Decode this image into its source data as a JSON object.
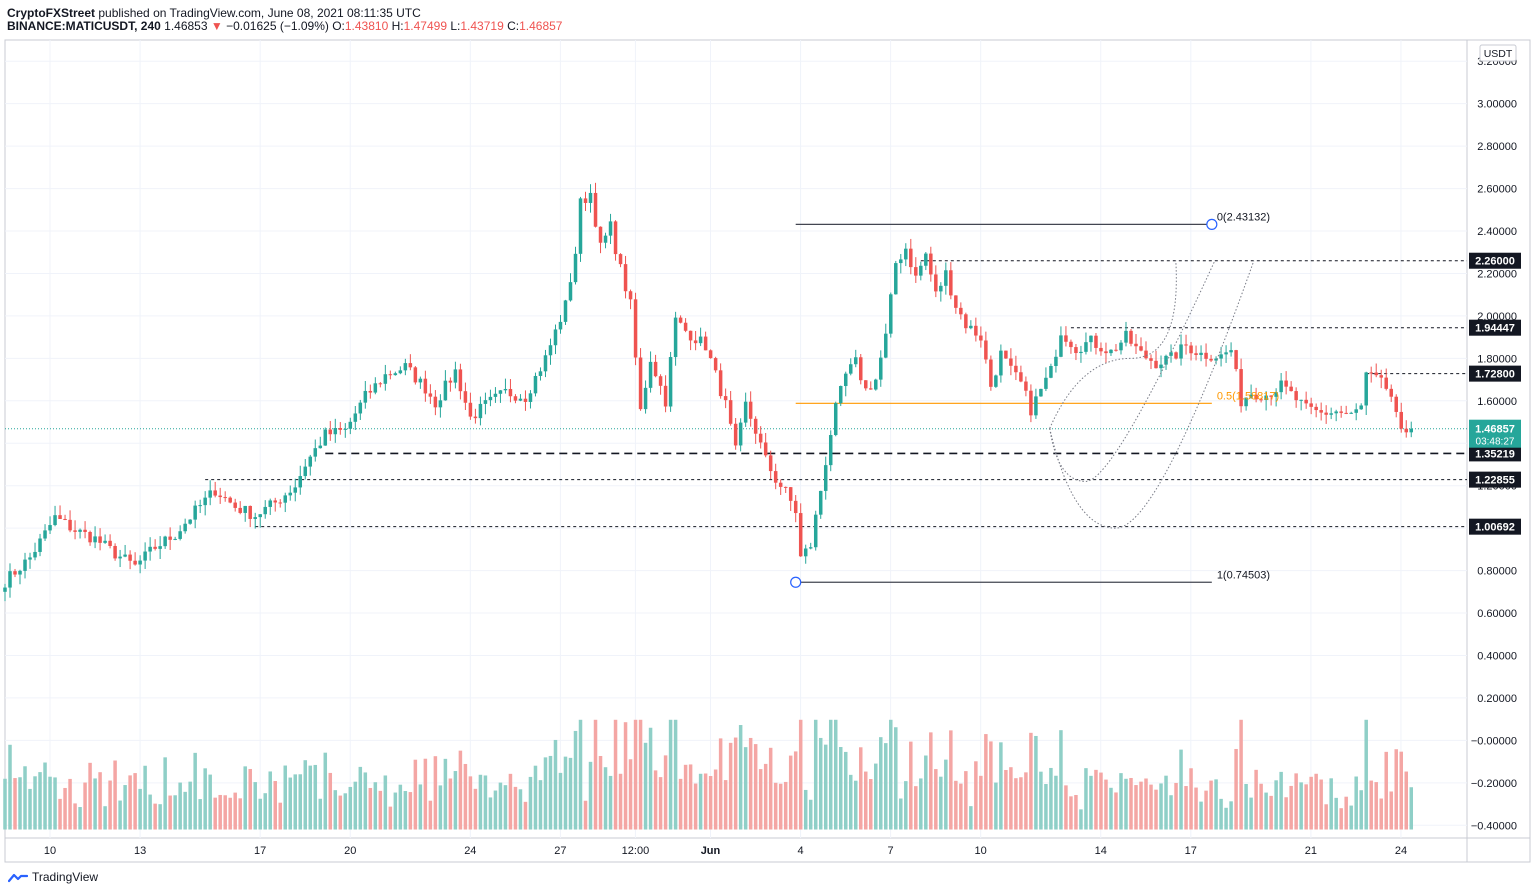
{
  "header": {
    "publisher": "CryptoFXStreet",
    "published_text": "published on TradingView.com, June 08, 2021 08:11:35 UTC",
    "symbol": "BINANCE:MATICUSDT, 240",
    "last": "1.46853",
    "change": "−0.01625 (−1.09%)",
    "o_label": "O:",
    "o_val": "1.43810",
    "h_label": "H:",
    "h_val": "1.47499",
    "l_label": "L:",
    "l_val": "1.43719",
    "c_label": "C:",
    "c_val": "1.46857"
  },
  "footer": {
    "brand": "TradingView"
  },
  "colors": {
    "up": "#26a69a",
    "down": "#ef5350",
    "up_vol": "#8fcfc7",
    "down_vol": "#f4a6a4",
    "fib_mid": "#ff9800"
  },
  "chart_data": {
    "type": "candlestick",
    "currency_label": "USDT",
    "ylim": [
      -0.46,
      3.3
    ],
    "y_ticks": [
      3.2,
      3.0,
      2.8,
      2.6,
      2.4,
      2.2,
      2.0,
      1.8,
      1.6,
      1.4,
      1.2,
      1.0,
      0.8,
      0.6,
      0.4,
      0.2,
      0.0,
      -0.2,
      -0.4
    ],
    "y_tick_labels": [
      "3.20000",
      "3.00000",
      "2.80000",
      "2.60000",
      "2.40000",
      "2.20000",
      "2.00000",
      "1.80000",
      "1.60000",
      "1.40000",
      "1.20000",
      "1.00000",
      "0.80000",
      "0.60000",
      "0.40000",
      "0.20000",
      "−0.00000",
      "−0.20000",
      "−0.40000"
    ],
    "x_ticks": [
      {
        "label": "10",
        "t": 4.5
      },
      {
        "label": "13",
        "t": 7.5
      },
      {
        "label": "17",
        "t": 11.5
      },
      {
        "label": "20",
        "t": 14.5
      },
      {
        "label": "24",
        "t": 18.5
      },
      {
        "label": "27",
        "t": 21.5
      },
      {
        "label": "12:00",
        "t": 24
      },
      {
        "label": "Jun",
        "t": 26.5
      },
      {
        "label": "4",
        "t": 29.5
      },
      {
        "label": "7",
        "t": 32.5
      },
      {
        "label": "10",
        "t": 35.5
      },
      {
        "label": "14",
        "t": 39.5
      },
      {
        "label": "17",
        "t": 42.5
      },
      {
        "label": "21",
        "t": 46.5
      },
      {
        "label": "24",
        "t": 49.5
      }
    ],
    "x_range_days": [
      3.0,
      51.7
    ],
    "candles_start_day": 3.0,
    "candle_interval_days": 0.1667,
    "anchors": [
      [
        0,
        0.75
      ],
      [
        5,
        0.86
      ],
      [
        10,
        1.05
      ],
      [
        14,
        0.99
      ],
      [
        18,
        0.95
      ],
      [
        22,
        0.88
      ],
      [
        26,
        0.82
      ],
      [
        30,
        0.91
      ],
      [
        34,
        0.97
      ],
      [
        38,
        1.08
      ],
      [
        42,
        1.18
      ],
      [
        46,
        1.1
      ],
      [
        50,
        1.06
      ],
      [
        54,
        1.12
      ],
      [
        58,
        1.2
      ],
      [
        60,
        1.3
      ],
      [
        64,
        1.44
      ],
      [
        68,
        1.46
      ],
      [
        72,
        1.62
      ],
      [
        76,
        1.72
      ],
      [
        80,
        1.76
      ],
      [
        84,
        1.66
      ],
      [
        86,
        1.59
      ],
      [
        90,
        1.74
      ],
      [
        93,
        1.52
      ],
      [
        96,
        1.58
      ],
      [
        100,
        1.64
      ],
      [
        104,
        1.62
      ],
      [
        108,
        1.8
      ],
      [
        112,
        2.05
      ],
      [
        114,
        2.3
      ],
      [
        115,
        2.53
      ],
      [
        117,
        2.58
      ],
      [
        119,
        2.32
      ],
      [
        121,
        2.42
      ],
      [
        123,
        2.22
      ],
      [
        125,
        2.05
      ],
      [
        127,
        1.55
      ],
      [
        129,
        1.8
      ],
      [
        132,
        1.6
      ],
      [
        134,
        1.98
      ],
      [
        136,
        1.93
      ],
      [
        140,
        1.86
      ],
      [
        144,
        1.58
      ],
      [
        146,
        1.36
      ],
      [
        148,
        1.58
      ],
      [
        150,
        1.46
      ],
      [
        152,
        1.32
      ],
      [
        154,
        1.23
      ],
      [
        156,
        1.17
      ],
      [
        158,
        1.08
      ],
      [
        159,
        0.86
      ],
      [
        161,
        0.92
      ],
      [
        163,
        1.18
      ],
      [
        165,
        1.45
      ],
      [
        166,
        1.56
      ],
      [
        168,
        1.72
      ],
      [
        170,
        1.78
      ],
      [
        172,
        1.65
      ],
      [
        174,
        1.7
      ],
      [
        176,
        1.9
      ],
      [
        178,
        2.25
      ],
      [
        180,
        2.32
      ],
      [
        182,
        2.18
      ],
      [
        184,
        2.29
      ],
      [
        186,
        2.1
      ],
      [
        188,
        2.2
      ],
      [
        190,
        2.05
      ],
      [
        192,
        1.96
      ],
      [
        195,
        1.9
      ],
      [
        197,
        1.67
      ],
      [
        199,
        1.82
      ],
      [
        201,
        1.74
      ],
      [
        203,
        1.68
      ],
      [
        205,
        1.56
      ],
      [
        207,
        1.65
      ],
      [
        209,
        1.74
      ],
      [
        211,
        1.93
      ],
      [
        214,
        1.85
      ],
      [
        217,
        1.88
      ],
      [
        221,
        1.83
      ],
      [
        224,
        1.9
      ],
      [
        227,
        1.82
      ],
      [
        230,
        1.78
      ],
      [
        233,
        1.8
      ],
      [
        236,
        1.86
      ],
      [
        239,
        1.82
      ],
      [
        243,
        1.81
      ],
      [
        245,
        1.84
      ],
      [
        247,
        1.6
      ],
      [
        249,
        1.64
      ],
      [
        252,
        1.63
      ],
      [
        255,
        1.67
      ],
      [
        257,
        1.63
      ],
      [
        260,
        1.56
      ],
      [
        263,
        1.54
      ],
      [
        266,
        1.55
      ],
      [
        269,
        1.53
      ],
      [
        271,
        1.57
      ],
      [
        272,
        1.72
      ],
      [
        274,
        1.7
      ],
      [
        276,
        1.66
      ],
      [
        277,
        1.62
      ],
      [
        278,
        1.52
      ],
      [
        279,
        1.44
      ],
      [
        280,
        1.46
      ],
      [
        281,
        1.47
      ]
    ],
    "fib_levels": [
      {
        "label": "0(2.43132)",
        "value": 2.43132,
        "from_candle": 158,
        "to_day": 43.2,
        "style": "solid"
      },
      {
        "label": "0.5(1.58817)",
        "value": 1.58817,
        "from_candle": 158,
        "to_day": 43.2,
        "style": "solid-orange"
      },
      {
        "label": "1(0.74503)",
        "value": 0.74503,
        "from_candle": 158,
        "to_day": 43.2,
        "style": "solid"
      }
    ],
    "levels": [
      {
        "label": "2.26000",
        "value": 2.26,
        "from_candle": 183,
        "style": "dashed"
      },
      {
        "label": "1.94447",
        "value": 1.94447,
        "from_candle": 213,
        "style": "dashed"
      },
      {
        "label": "1.72800",
        "value": 1.728,
        "from_candle": 272,
        "style": "dashed"
      },
      {
        "label": "1.35219",
        "value": 1.35219,
        "from_candle": 64,
        "style": "dashed-bold"
      },
      {
        "label": "1.22855",
        "value": 1.22855,
        "from_candle": 40,
        "style": "dashed"
      },
      {
        "label": "1.00692",
        "value": 1.00692,
        "from_candle": 50,
        "style": "dashed"
      }
    ],
    "current_price": {
      "value": 1.46857,
      "label": "1.46857",
      "countdown": "03:48:27"
    },
    "projections": [
      {
        "from_day": 37.8,
        "from": 1.47,
        "via_day": 40.5,
        "via": 1.8,
        "to_day": 42.0,
        "to": 2.26
      },
      {
        "from_day": 37.8,
        "from": 1.47,
        "via_day": 39.0,
        "via": 1.22,
        "to_day": 43.3,
        "to": 2.26
      },
      {
        "from_day": 37.8,
        "from": 1.47,
        "via_day": 40.0,
        "via": 1.0,
        "to_day": 44.6,
        "to": 2.26
      }
    ]
  }
}
